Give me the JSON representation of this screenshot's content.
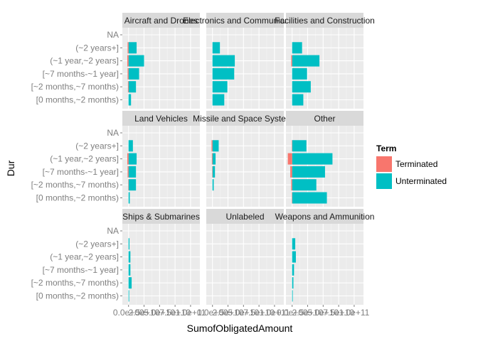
{
  "chart_data": {
    "type": "bar",
    "orientation": "horizontal",
    "stacked": true,
    "facet_layout": "3x3",
    "xlabel": "SumofObligatedAmount",
    "ylabel": "Dur",
    "categories": [
      "[0 months,~2 months)",
      "[~2 months,~7 months)",
      "[~7 months-~1 year]",
      "(~1 year,~2 years]",
      "(~2 years+]",
      "NA"
    ],
    "x_tick_labels": [
      "0.0e+00",
      "2.5e+10",
      "5.0e+10",
      "7.5e+10",
      "1.0e+11"
    ],
    "x_ticks": [
      0,
      25000000000,
      50000000000,
      75000000000,
      100000000000
    ],
    "xlim": [
      -10000000000,
      115000000000
    ],
    "grid": true,
    "legend": {
      "title": "Term",
      "position": "right",
      "entries": [
        {
          "label": "Terminated",
          "color": "#F8766D"
        },
        {
          "label": "Unterminated",
          "color": "#00BFC4"
        }
      ]
    },
    "colors": {
      "terminated": "#F8766D",
      "unterminated": "#00BFC4",
      "panel_bg": "#EBEBEB",
      "strip_bg": "#D9D9D9",
      "grid_major": "#FFFFFF",
      "grid_minor": "#F5F5F5"
    },
    "facets": [
      {
        "label": "Aircraft and Drones",
        "terminated": [
          0,
          -1000000000,
          -1500000000,
          -2000000000,
          -1500000000,
          0
        ],
        "unterminated": [
          4000000000,
          12000000000,
          17000000000,
          25000000000,
          13000000000,
          0
        ]
      },
      {
        "label": "Electronics and Communications",
        "terminated": [
          0,
          0,
          0,
          0,
          0,
          0
        ],
        "unterminated": [
          19000000000,
          24000000000,
          35000000000,
          36000000000,
          12000000000,
          0
        ]
      },
      {
        "label": "Facilities and Construction",
        "terminated": [
          0,
          0,
          0,
          -1500000000,
          0,
          0
        ],
        "unterminated": [
          18000000000,
          30000000000,
          24000000000,
          44000000000,
          16000000000,
          0
        ]
      },
      {
        "label": "Land Vehicles",
        "terminated": [
          0,
          -500000000,
          -1500000000,
          -2000000000,
          0,
          0
        ],
        "unterminated": [
          2000000000,
          12000000000,
          12000000000,
          13000000000,
          7000000000,
          0
        ]
      },
      {
        "label": "Missile and Space Systems",
        "terminated": [
          0,
          0,
          -500000000,
          -1000000000,
          -1500000000,
          0
        ],
        "unterminated": [
          0,
          2000000000,
          4000000000,
          5000000000,
          10000000000,
          0
        ]
      },
      {
        "label": "Other",
        "terminated": [
          -500000000,
          -1500000000,
          -3000000000,
          -7000000000,
          -500000000,
          0
        ],
        "unterminated": [
          56000000000,
          39000000000,
          53000000000,
          65000000000,
          23000000000,
          0
        ]
      },
      {
        "label": "Ships & Submarines",
        "terminated": [
          0,
          0,
          0,
          0,
          0,
          0
        ],
        "unterminated": [
          1000000000,
          5000000000,
          3000000000,
          3000000000,
          1500000000,
          0
        ]
      },
      {
        "label": "Unlabeled",
        "terminated": [
          0,
          0,
          0,
          0,
          0,
          0
        ],
        "unterminated": [
          0,
          0,
          0,
          0,
          0,
          0
        ]
      },
      {
        "label": "Weapons and Ammunition",
        "terminated": [
          0,
          0,
          0,
          0,
          0,
          0
        ],
        "unterminated": [
          1000000000,
          2000000000,
          3000000000,
          6000000000,
          5000000000,
          0
        ]
      }
    ]
  }
}
